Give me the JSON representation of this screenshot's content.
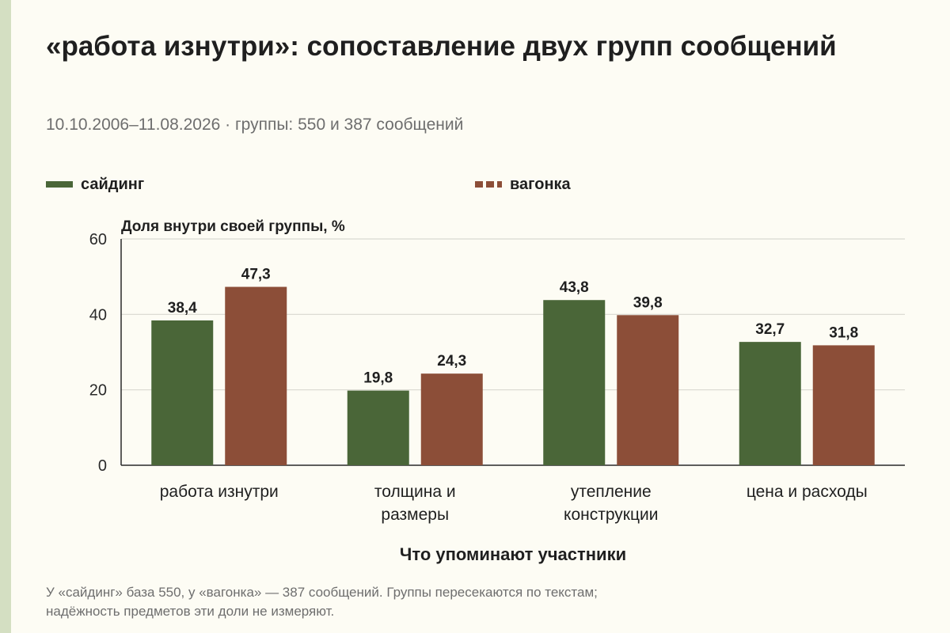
{
  "header": {
    "title": "«работа изнутри»: сопоставление двух групп сообщений",
    "subtitle": "10.10.2006–11.08.2026 · группы: 550 и 387 сообщений"
  },
  "footnote": {
    "line1": "У «сайдинг» база 550, у «вагонка» — 387 сообщений. Группы пересекаются по текстам;",
    "line2": "надёжность предметов эти доли не измеряют."
  },
  "colors": {
    "saiding": "#4a6638",
    "vagonka": "#8c4e38",
    "grid": "#d8d8d0",
    "axis": "#2a2a2a"
  },
  "chart_data": {
    "type": "bar",
    "ylabel": "Доля внутри своей группы, %",
    "xlabel": "Что упоминают участники",
    "ylim": [
      0,
      60
    ],
    "yticks": [
      0,
      20,
      40,
      60
    ],
    "grid": true,
    "legend_position": "top",
    "categories": [
      [
        "работа изнутри"
      ],
      [
        "толщина и",
        "размеры"
      ],
      [
        "утепление",
        "конструкции"
      ],
      [
        "цена и расходы"
      ]
    ],
    "series": [
      {
        "name": "сайдинг",
        "values": [
          38.4,
          19.8,
          43.8,
          32.7
        ],
        "labels": [
          "38,4",
          "19,8",
          "43,8",
          "32,7"
        ]
      },
      {
        "name": "вагонка",
        "values": [
          47.3,
          24.3,
          39.8,
          31.8
        ],
        "labels": [
          "47,3",
          "24,3",
          "39,8",
          "31,8"
        ]
      }
    ]
  }
}
